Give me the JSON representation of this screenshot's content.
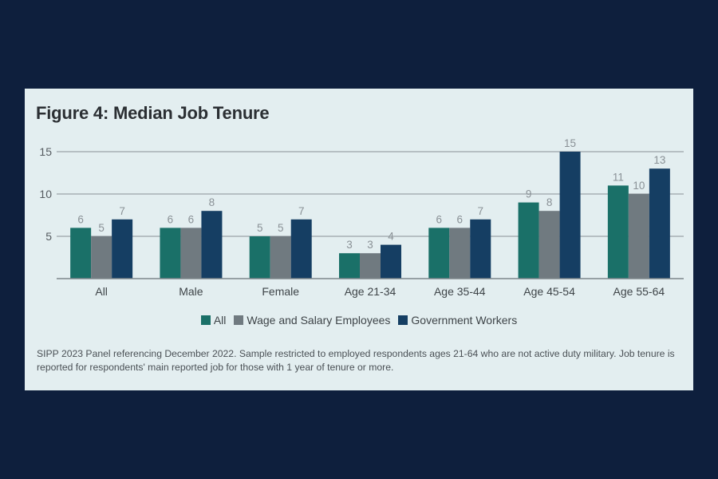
{
  "title": "Figure 4: Median Job Tenure",
  "note": "SIPP 2023 Panel referencing December 2022. Sample restricted to employed respondents ages 21-64 who are not active duty military. Job tenure is reported for respondents' main reported job for those with 1 year of tenure or more.",
  "chart_data": {
    "type": "bar",
    "title": "Figure 4: Median Job Tenure",
    "categories": [
      "All",
      "Male",
      "Female",
      "Age 21-34",
      "Age 35-44",
      "Age 45-54",
      "Age 55-64"
    ],
    "series": [
      {
        "name": "All",
        "values": [
          6,
          6,
          5,
          3,
          6,
          9,
          11
        ],
        "color": "#1a7068"
      },
      {
        "name": "Wage and Salary Employees",
        "values": [
          5,
          6,
          5,
          3,
          6,
          8,
          10
        ],
        "color": "#707a80"
      },
      {
        "name": "Government Workers",
        "values": [
          7,
          8,
          7,
          4,
          7,
          15,
          13
        ],
        "color": "#153e63"
      }
    ],
    "yticks": [
      5,
      10,
      15
    ],
    "ylim": [
      0,
      16
    ],
    "xlabel": "",
    "ylabel": "",
    "grid": true,
    "legend_position": "bottom",
    "data_labels": true
  }
}
